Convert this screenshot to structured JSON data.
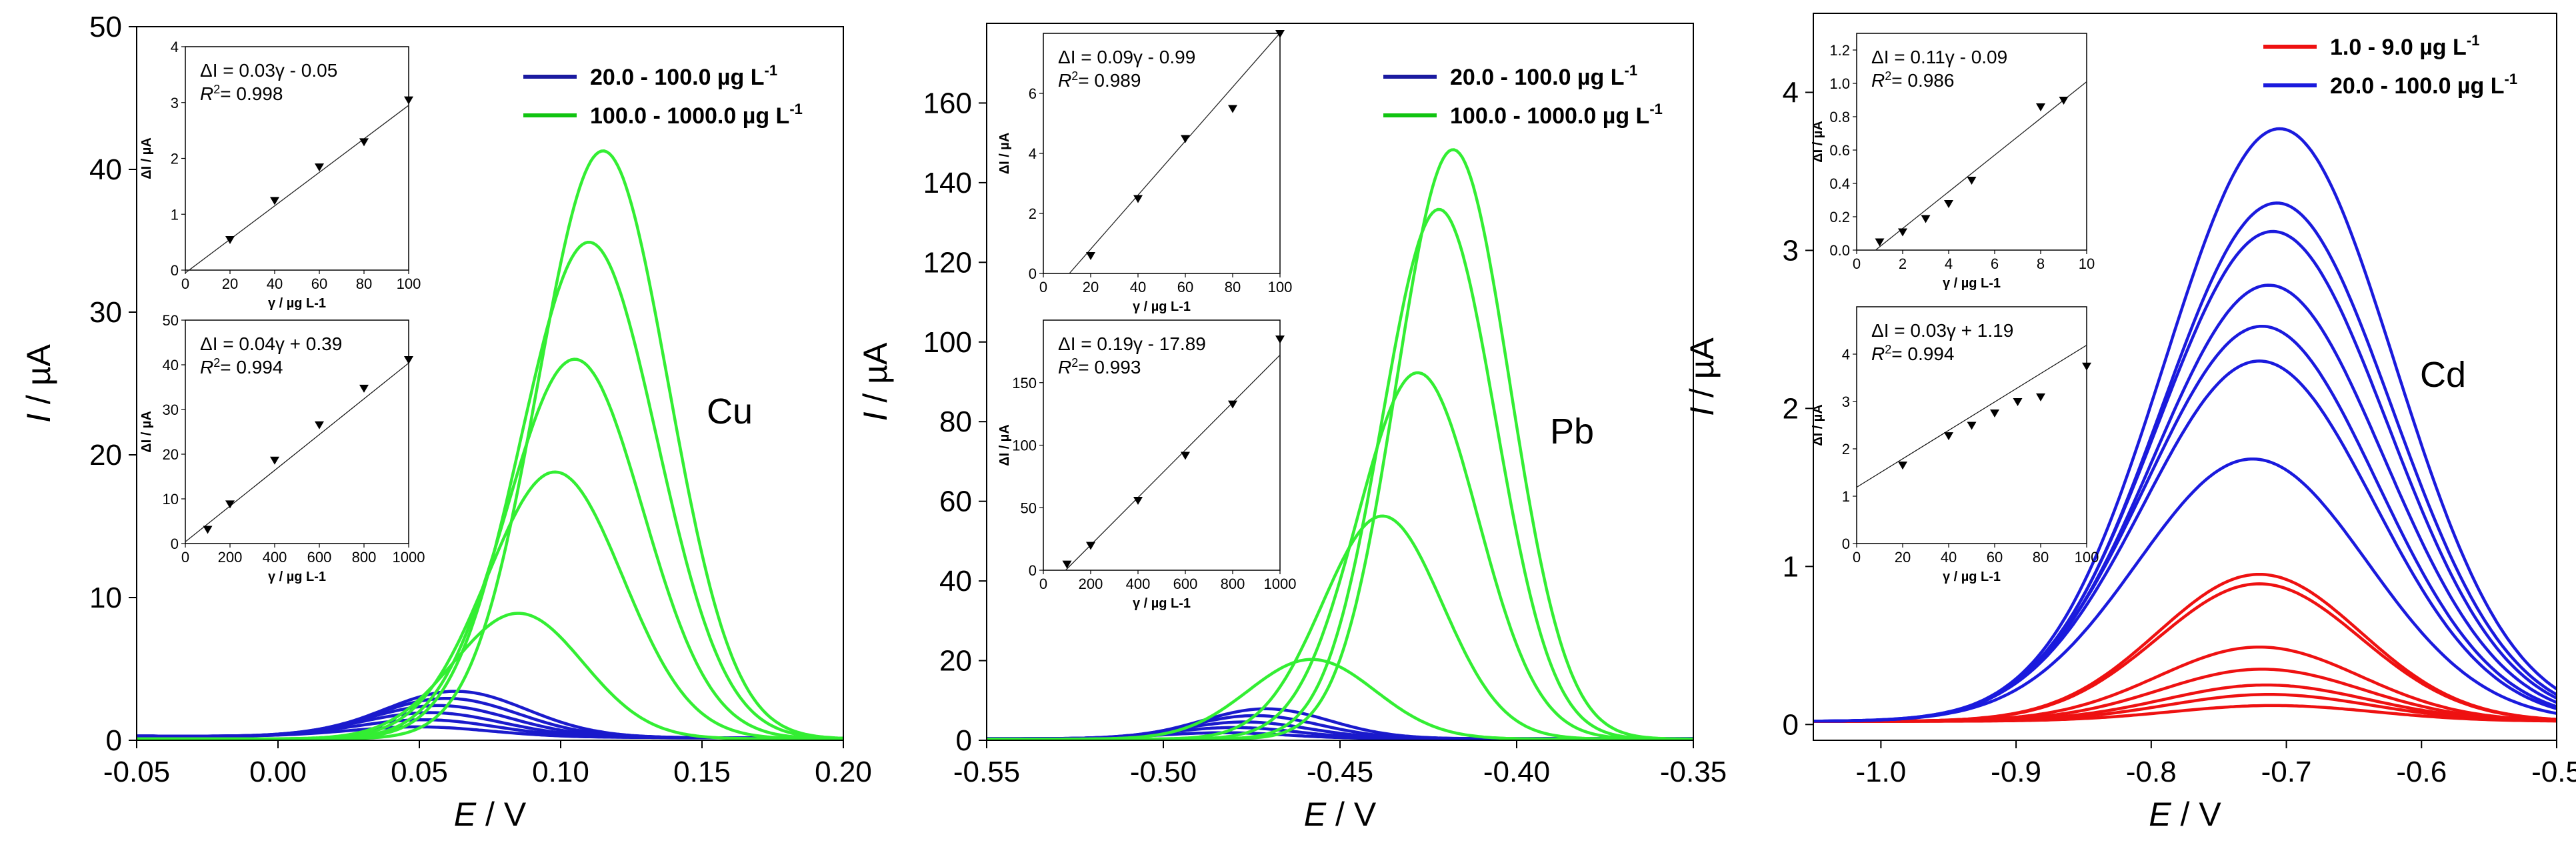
{
  "chart_data": [
    {
      "type": "line",
      "element": "Cu",
      "xlabel": {
        "italic": "E",
        "rest": " / V"
      },
      "ylabel": {
        "italic": "I",
        "rest": " / µA"
      },
      "xlim": [
        -0.05,
        0.2
      ],
      "ylim": [
        0,
        50
      ],
      "xticks": [
        "-0.05",
        "0.00",
        "0.05",
        "0.10",
        "0.15",
        "0.20"
      ],
      "xtick_values": [
        -0.05,
        0.0,
        0.05,
        0.1,
        0.15,
        0.2
      ],
      "yticks": [
        "0",
        "10",
        "20",
        "30",
        "40",
        "50"
      ],
      "ytick_values": [
        0,
        10,
        20,
        30,
        40,
        50
      ],
      "legend_position": "top-right",
      "legend": [
        {
          "label": "20.0 - 100.0 µg L",
          "sup": "-1",
          "color": "#1a1aa0"
        },
        {
          "label": "100.0 - 1000.0 µg L",
          "sup": "-1",
          "color": "#11c411"
        }
      ],
      "series": [
        {
          "name": "20.0 - 100.0 µg L-1",
          "color": "#1a1acc",
          "baseline": 0.3,
          "tail": 0.15,
          "peaks": [
            [
              0.05,
              0.7,
              0.025
            ],
            [
              0.052,
              1.2,
              0.025
            ],
            [
              0.054,
              1.7,
              0.025
            ],
            [
              0.057,
              2.2,
              0.025
            ],
            [
              0.06,
              2.7,
              0.025
            ],
            [
              0.063,
              3.2,
              0.025
            ]
          ]
        },
        {
          "name": "100.0 - 1000.0 µg L-1",
          "color": "#33ee33",
          "baseline": 0.1,
          "tail": 0.1,
          "peaks": [
            [
              0.085,
              8.8,
              0.023
            ],
            [
              0.098,
              18.7,
              0.024
            ],
            [
              0.105,
              26.6,
              0.024
            ],
            [
              0.11,
              34.8,
              0.024
            ],
            [
              0.115,
              41.2,
              0.023
            ]
          ]
        }
      ],
      "insets": [
        {
          "equation": "ΔI = 0.03γ - 0.05",
          "r2": "= 0.998",
          "xlabel": "γ / µg L-1",
          "ylabel": "ΔI / µA",
          "xlim": [
            0,
            100
          ],
          "ylim": [
            0,
            4
          ],
          "xticks": [
            "0",
            "20",
            "40",
            "60",
            "80",
            "100"
          ],
          "xtick_values": [
            0,
            20,
            40,
            60,
            80,
            100
          ],
          "yticks": [
            "0",
            "1",
            "2",
            "3",
            "4"
          ],
          "ytick_values": [
            0,
            1,
            2,
            3,
            4
          ],
          "points": [
            [
              20,
              0.55
            ],
            [
              40,
              1.25
            ],
            [
              60,
              1.85
            ],
            [
              80,
              2.3
            ],
            [
              100,
              3.05
            ]
          ],
          "line": [
            [
              0,
              -0.05
            ],
            [
              100,
              2.95
            ]
          ]
        },
        {
          "equation": "ΔI = 0.04γ + 0.39",
          "r2": "= 0.994",
          "xlabel": "γ / µg L-1",
          "ylabel": "ΔI / µA",
          "xlim": [
            0,
            1000
          ],
          "ylim": [
            0,
            50
          ],
          "xticks": [
            "0",
            "200",
            "400",
            "600",
            "800",
            "1000"
          ],
          "xtick_values": [
            0,
            200,
            400,
            600,
            800,
            1000
          ],
          "yticks": [
            "0",
            "10",
            "20",
            "30",
            "40",
            "50"
          ],
          "ytick_values": [
            0,
            10,
            20,
            30,
            40,
            50
          ],
          "points": [
            [
              100,
              3.2
            ],
            [
              200,
              8.9
            ],
            [
              400,
              18.7
            ],
            [
              600,
              26.6
            ],
            [
              800,
              34.8
            ],
            [
              1000,
              41.2
            ]
          ],
          "line": [
            [
              0,
              0.39
            ],
            [
              1000,
              40.39
            ]
          ]
        }
      ]
    },
    {
      "type": "line",
      "element": "Pb",
      "xlabel": {
        "italic": "E",
        "rest": " / V"
      },
      "ylabel": {
        "italic": "I",
        "rest": " / µA"
      },
      "xlim": [
        -0.55,
        -0.35
      ],
      "ylim": [
        0,
        180
      ],
      "xticks": [
        "-0.55",
        "-0.50",
        "-0.45",
        "-0.40",
        "-0.35"
      ],
      "xtick_values": [
        -0.55,
        -0.5,
        -0.45,
        -0.4,
        -0.35
      ],
      "yticks": [
        "0",
        "20",
        "40",
        "60",
        "80",
        "100",
        "120",
        "140",
        "160"
      ],
      "ytick_values": [
        0,
        20,
        40,
        60,
        80,
        100,
        120,
        140,
        160
      ],
      "legend_position": "top-right",
      "legend": [
        {
          "label": "20.0 - 100.0 µg L",
          "sup": "-1",
          "color": "#1a1aa0"
        },
        {
          "label": "100.0 - 1000.0 µg L",
          "sup": "-1",
          "color": "#11c411"
        }
      ],
      "series": [
        {
          "name": "20.0 - 100.0 µg L-1",
          "color": "#1a1acc",
          "baseline": 0.4,
          "tail": 0.4,
          "peaks": [
            [
              -0.483,
              1.5,
              0.018
            ],
            [
              -0.48,
              2.8,
              0.018
            ],
            [
              -0.477,
              4.2,
              0.018
            ],
            [
              -0.474,
              5.8,
              0.018
            ],
            [
              -0.471,
              7.5,
              0.018
            ]
          ]
        },
        {
          "name": "100.0 - 1000.0 µg L-1",
          "color": "#33ee33",
          "baseline": 0.3,
          "tail": 0.3,
          "peaks": [
            [
              -0.458,
              20,
              0.018
            ],
            [
              -0.438,
              56,
              0.017
            ],
            [
              -0.428,
              92,
              0.017
            ],
            [
              -0.422,
              133,
              0.016
            ],
            [
              -0.418,
              148,
              0.016
            ]
          ]
        }
      ],
      "insets": [
        {
          "equation": "ΔI = 0.09γ - 0.99",
          "r2": "= 0.989",
          "xlabel": "γ / µg L-1",
          "ylabel": "ΔI / µA",
          "xlim": [
            0,
            100
          ],
          "ylim": [
            0,
            8
          ],
          "xticks": [
            "0",
            "20",
            "40",
            "60",
            "80",
            "100"
          ],
          "xtick_values": [
            0,
            20,
            40,
            60,
            80,
            100
          ],
          "yticks": [
            "0",
            "2",
            "4",
            "6"
          ],
          "ytick_values": [
            0,
            2,
            4,
            6
          ],
          "points": [
            [
              20,
              0.6
            ],
            [
              40,
              2.5
            ],
            [
              60,
              4.5
            ],
            [
              80,
              5.5
            ],
            [
              100,
              8.0
            ]
          ],
          "line": [
            [
              11,
              0
            ],
            [
              100,
              8.01
            ]
          ]
        },
        {
          "equation": "ΔI = 0.19γ - 17.89",
          "r2": "= 0.993",
          "xlabel": "γ / µg L-1",
          "ylabel": "ΔI / µA",
          "xlim": [
            0,
            1000
          ],
          "ylim": [
            0,
            200
          ],
          "xticks": [
            "0",
            "200",
            "400",
            "600",
            "800",
            "1000"
          ],
          "xtick_values": [
            0,
            200,
            400,
            600,
            800,
            1000
          ],
          "yticks": [
            "0",
            "50",
            "100",
            "150"
          ],
          "ytick_values": [
            0,
            50,
            100,
            150
          ],
          "points": [
            [
              100,
              5
            ],
            [
              200,
              20
            ],
            [
              400,
              56
            ],
            [
              600,
              92
            ],
            [
              800,
              133
            ],
            [
              1000,
              185
            ]
          ],
          "line": [
            [
              94,
              0
            ],
            [
              1000,
              172.11
            ]
          ]
        }
      ]
    },
    {
      "type": "line",
      "element": "Cd",
      "xlabel": {
        "italic": "E",
        "rest": " / V"
      },
      "ylabel": {
        "italic": "I",
        "rest": " / µA"
      },
      "xlim": [
        -1.05,
        -0.5
      ],
      "ylim": [
        -0.1,
        4.5
      ],
      "xticks": [
        "-1.0",
        "-0.9",
        "-0.8",
        "-0.7",
        "-0.6",
        "-0.5"
      ],
      "xtick_values": [
        -1.0,
        -0.9,
        -0.8,
        -0.7,
        -0.6,
        -0.5
      ],
      "yticks": [
        "0",
        "1",
        "2",
        "3",
        "4"
      ],
      "ytick_values": [
        0,
        1,
        2,
        3,
        4
      ],
      "legend_position": "top-right",
      "legend": [
        {
          "label": "1.0 - 9.0 µg L",
          "sup": "-1",
          "color": "#ee1111"
        },
        {
          "label": "20.0 - 100.0 µg L",
          "sup": "-1",
          "color": "#1a1add"
        }
      ],
      "series": [
        {
          "name": "1.0 - 9.0 µg L-1",
          "color": "#ee1111",
          "baseline": 0.02,
          "tail": 0.02,
          "peaks": [
            [
              -0.71,
              0.1,
              0.075
            ],
            [
              -0.713,
              0.17,
              0.075
            ],
            [
              -0.715,
              0.23,
              0.075
            ],
            [
              -0.718,
              0.33,
              0.075
            ],
            [
              -0.72,
              0.47,
              0.075
            ],
            [
              -0.72,
              0.87,
              0.075
            ],
            [
              -0.72,
              0.93,
              0.075
            ]
          ]
        },
        {
          "name": "20.0 - 100.0 µg L-1",
          "color": "#1a1add",
          "baseline": 0.02,
          "tail": 0.02,
          "peaks": [
            [
              -0.725,
              1.66,
              0.085
            ],
            [
              -0.72,
              2.28,
              0.085
            ],
            [
              -0.718,
              2.5,
              0.085
            ],
            [
              -0.713,
              2.76,
              0.085
            ],
            [
              -0.71,
              3.1,
              0.085
            ],
            [
              -0.707,
              3.28,
              0.085
            ],
            [
              -0.705,
              3.75,
              0.085
            ]
          ]
        }
      ],
      "insets": [
        {
          "equation": "ΔI = 0.11γ - 0.09",
          "r2": "= 0.986",
          "xlabel": "γ / µg L-1",
          "ylabel": "ΔI / µA",
          "xlim": [
            0,
            10
          ],
          "ylim": [
            0,
            1.3
          ],
          "xticks": [
            "0",
            "2",
            "4",
            "6",
            "8",
            "10"
          ],
          "xtick_values": [
            0,
            2,
            4,
            6,
            8,
            10
          ],
          "yticks": [
            "0.0",
            "0.2",
            "0.4",
            "0.6",
            "0.8",
            "1.0",
            "1.2"
          ],
          "ytick_values": [
            0,
            0.2,
            0.4,
            0.6,
            0.8,
            1.0,
            1.2
          ],
          "points": [
            [
              1,
              0.05
            ],
            [
              2,
              0.11
            ],
            [
              3,
              0.19
            ],
            [
              4,
              0.28
            ],
            [
              5,
              0.42
            ],
            [
              8,
              0.86
            ],
            [
              9,
              0.9
            ]
          ],
          "line": [
            [
              0.82,
              0
            ],
            [
              10,
              1.01
            ]
          ]
        },
        {
          "equation": "ΔI = 0.03γ + 1.19",
          "r2": "= 0.994",
          "xlabel": "γ / µg L-1",
          "ylabel": "ΔI / µA",
          "xlim": [
            0,
            100
          ],
          "ylim": [
            0,
            5
          ],
          "xticks": [
            "0",
            "20",
            "40",
            "60",
            "80",
            "100"
          ],
          "xtick_values": [
            0,
            20,
            40,
            60,
            80,
            100
          ],
          "yticks": [
            "0",
            "1",
            "2",
            "3",
            "4"
          ],
          "ytick_values": [
            0,
            1,
            2,
            3,
            4
          ],
          "points": [
            [
              20,
              1.66
            ],
            [
              40,
              2.28
            ],
            [
              50,
              2.5
            ],
            [
              60,
              2.76
            ],
            [
              70,
              3.0
            ],
            [
              80,
              3.1
            ],
            [
              100,
              3.75
            ]
          ],
          "line": [
            [
              0,
              1.19
            ],
            [
              100,
              4.19
            ]
          ]
        }
      ]
    }
  ]
}
